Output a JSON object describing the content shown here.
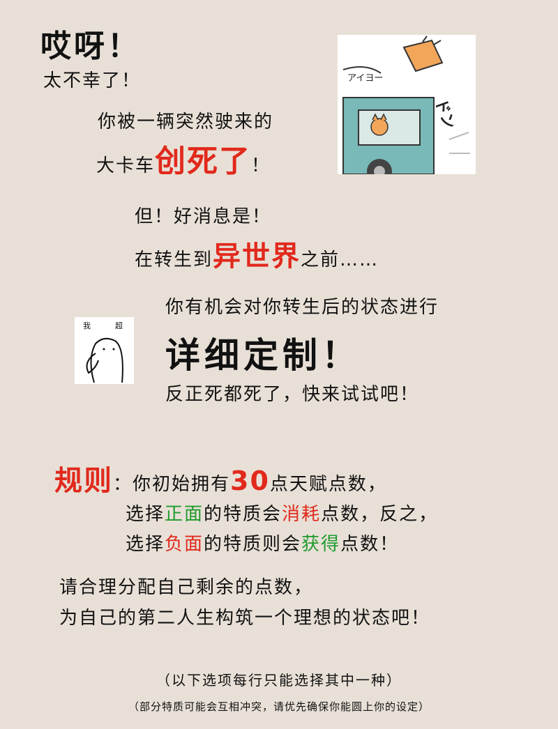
{
  "intro": {
    "exclaim": "哎呀！",
    "unlucky": "太不幸了！",
    "hit_line1": "你被一辆突然驶来的",
    "hit_line2_prefix": "大卡车",
    "hit_line2_emph": "创死了",
    "hit_line2_suffix": "！",
    "good_news": "但！好消息是！",
    "before_prefix": "在转生到",
    "before_emph": "异世界",
    "before_suffix": "之前……",
    "chance": "你有机会对你转生后的状态进行",
    "custom": "详细定制！",
    "try_it": "反正死都死了，快来试试吧！"
  },
  "truck_image": {
    "caption": "アイヨー",
    "sfx": "ドン"
  },
  "cat_image": {
    "caption_left": "我",
    "caption_right": "超"
  },
  "rules": {
    "label": "规则",
    "colon": "：",
    "l1_prefix": "你初始拥有",
    "l1_points": "30",
    "l1_suffix": "点天赋点数，",
    "l2_prefix": "选择",
    "l2_pos": "正面",
    "l2_mid": "的特质会",
    "l2_consume": "消耗",
    "l2_suffix": "点数，反之，",
    "l3_prefix": "选择",
    "l3_neg": "负面",
    "l3_mid": "的特质则会",
    "l3_gain": "获得",
    "l3_suffix": "点数！"
  },
  "advice": {
    "line1": "请合理分配自己剩余的点数，",
    "line2": "为自己的第二人生构筑一个理想的状态吧！"
  },
  "footer": {
    "note": "（以下选项每行只能选择其中一种）",
    "subnote": "（部分特质可能会互相冲突，请优先确保你能圆上你的设定）"
  },
  "colors": {
    "background": "#e8e0d7",
    "red": "#e1291c",
    "green": "#1f9a2d",
    "truck": "#79b9b8"
  }
}
